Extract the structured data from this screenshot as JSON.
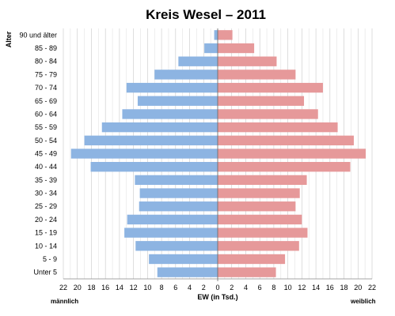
{
  "chart_data": {
    "type": "bar",
    "title": "Kreis Wesel – 2011",
    "ylabel": "Alter",
    "xlabel": "EW (in Tsd.)",
    "left_label": "männlich",
    "right_label": "weiblich",
    "xlim": [
      -22,
      22
    ],
    "x_ticks": [
      "22",
      "20",
      "18",
      "16",
      "14",
      "12",
      "10",
      "8",
      "6",
      "4",
      "2",
      "0",
      "2",
      "4",
      "6",
      "8",
      "10",
      "12",
      "14",
      "16",
      "18",
      "20",
      "22"
    ],
    "grid": true,
    "categories": [
      "90 und älter",
      "85 - 89",
      "80 - 84",
      "75 - 79",
      "70 - 74",
      "65 - 69",
      "60 - 64",
      "55 - 59",
      "50 - 54",
      "45 - 49",
      "40 - 44",
      "35 - 39",
      "30 - 34",
      "25 - 29",
      "20 - 24",
      "15 - 19",
      "10 - 14",
      "5 - 9",
      "Unter 5"
    ],
    "series": [
      {
        "name": "männlich",
        "color": "#8DB4E2",
        "values": [
          0.5,
          1.9,
          5.6,
          9.0,
          13.0,
          11.4,
          13.6,
          16.5,
          19.0,
          20.9,
          18.1,
          11.8,
          11.1,
          11.2,
          12.9,
          13.3,
          11.7,
          9.8,
          8.6
        ]
      },
      {
        "name": "weiblich",
        "color": "#E6999A",
        "values": [
          2.1,
          5.2,
          8.4,
          11.1,
          15.0,
          12.3,
          14.3,
          17.1,
          19.4,
          21.1,
          18.9,
          12.7,
          11.7,
          11.1,
          12.0,
          12.8,
          11.6,
          9.6,
          8.3
        ]
      }
    ]
  }
}
